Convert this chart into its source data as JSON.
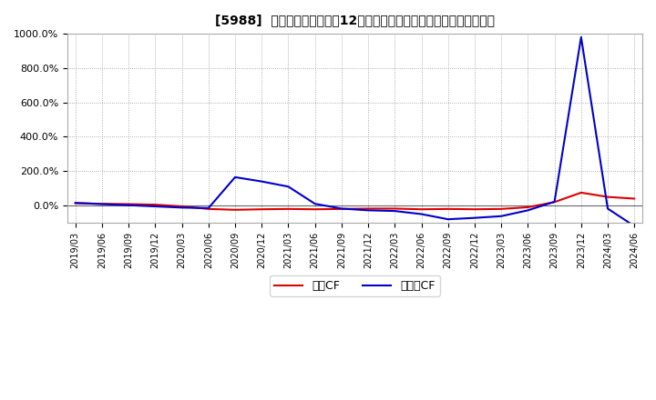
{
  "title": "[5988]  キャッシュフローの12か月移動合計の対前年同期増減率の推移",
  "background_color": "#ffffff",
  "plot_bg_color": "#ffffff",
  "grid_color": "#999999",
  "legend_labels": [
    "営業CF",
    "フリーCF"
  ],
  "line_colors": [
    "#dd0000",
    "#0000cc"
  ],
  "ylim": [
    -100,
    1000
  ],
  "yticks": [
    0,
    200,
    400,
    600,
    800,
    1000
  ],
  "dates": [
    "2019/03",
    "2019/06",
    "2019/09",
    "2019/12",
    "2020/03",
    "2020/06",
    "2020/09",
    "2020/12",
    "2021/03",
    "2021/06",
    "2021/09",
    "2021/12",
    "2022/03",
    "2022/06",
    "2022/09",
    "2022/12",
    "2023/03",
    "2023/06",
    "2023/09",
    "2023/12",
    "2024/03",
    "2024/06"
  ],
  "eigyo_cf": [
    14,
    10,
    8,
    5,
    -5,
    -20,
    -25,
    -22,
    -20,
    -22,
    -20,
    -18,
    -18,
    -22,
    -20,
    -22,
    -20,
    -10,
    20,
    75,
    50,
    40
  ],
  "free_cf": [
    15,
    8,
    2,
    -5,
    -12,
    -15,
    165,
    140,
    110,
    10,
    -18,
    -28,
    -32,
    -50,
    -80,
    -72,
    -62,
    -28,
    22,
    980,
    -18,
    -120
  ]
}
